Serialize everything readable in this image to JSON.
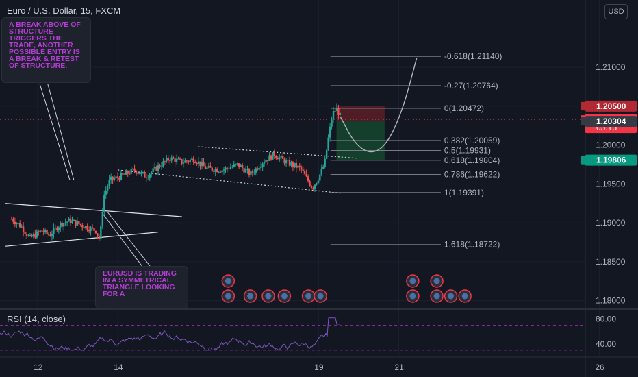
{
  "header": {
    "title": "Euro / U.S. Dollar, 15, FXCM",
    "currency_button": "USD"
  },
  "indicator": {
    "label": "RSI (14, close)"
  },
  "annotations": [
    {
      "text": "A BREAK ABOVE OF STRUCTURE TRIGGERS THE TRADE, ANOTHER POSSIBLE ENTRY IS A BREAK & RETEST OF STRUCTURE."
    },
    {
      "text": "EURUSD IS TRADING IN A SYMMETRICAL TRIANGLE LOOKING FOR A"
    }
  ],
  "colors": {
    "background": "#131722",
    "bull_candle": "#26a69a",
    "bear_candle": "#ef5350",
    "annotation_text": "#b53dd6",
    "rsi_line": "#7e57c2",
    "fib_line": "#787b86",
    "stop_zone": "#5a1f26",
    "target_zone": "#16472f"
  },
  "chart_data": {
    "type": "candlestick",
    "symbol": "EURUSD",
    "timeframe": "15",
    "ylim": [
      1.179,
      1.216
    ],
    "y_ticks": [
      "1.21000",
      "1.20500",
      "1.20000",
      "1.19500",
      "1.19000",
      "1.18500",
      "1.18000"
    ],
    "x_ticks": [
      "12",
      "14",
      "19",
      "21",
      "26"
    ],
    "x_tick_days": [
      12,
      14,
      19,
      21,
      26
    ],
    "fib_levels": [
      {
        "label": "-0.618(1.21140)",
        "price": 1.2114
      },
      {
        "label": "-0.27(1.20764)",
        "price": 1.20764
      },
      {
        "label": "0(1.20472)",
        "price": 1.20472
      },
      {
        "label": "0.382(1.20059)",
        "price": 1.20059
      },
      {
        "label": "0.5(1.19931)",
        "price": 1.19931
      },
      {
        "label": "0.618(1.19804)",
        "price": 1.19804
      },
      {
        "label": "0.786(1.19622)",
        "price": 1.19622
      },
      {
        "label": "1(1.19391)",
        "price": 1.19391
      },
      {
        "label": "1.618(1.18722)",
        "price": 1.18722
      }
    ],
    "price_labels": [
      {
        "text": "1.20500",
        "price": 1.205,
        "color": "#b22833"
      },
      {
        "text": "1.20330",
        "countdown": "03:15",
        "price": 1.2033,
        "color": "#f23645"
      },
      {
        "text": "1.20304",
        "price": 1.20304,
        "color": "#363a45"
      },
      {
        "text": "1.19806",
        "price": 1.19806,
        "color": "#089981"
      }
    ],
    "position": {
      "entry": 1.20304,
      "stop": 1.205,
      "target": 1.19806
    },
    "rsi": {
      "ylim": [
        20,
        95
      ],
      "ticks": [
        "80.00",
        "40.00"
      ],
      "bands": [
        70,
        30
      ]
    },
    "price_path": [
      {
        "day": 11.35,
        "price": 1.1905
      },
      {
        "day": 11.6,
        "price": 1.1895
      },
      {
        "day": 11.8,
        "price": 1.188
      },
      {
        "day": 12.1,
        "price": 1.189
      },
      {
        "day": 12.3,
        "price": 1.1884
      },
      {
        "day": 12.55,
        "price": 1.1898
      },
      {
        "day": 12.8,
        "price": 1.1903
      },
      {
        "day": 13.1,
        "price": 1.1897
      },
      {
        "day": 13.45,
        "price": 1.189
      },
      {
        "day": 13.55,
        "price": 1.1878
      },
      {
        "day": 13.65,
        "price": 1.1935
      },
      {
        "day": 13.8,
        "price": 1.1955
      },
      {
        "day": 14.1,
        "price": 1.196
      },
      {
        "day": 14.4,
        "price": 1.1968
      },
      {
        "day": 14.7,
        "price": 1.196
      },
      {
        "day": 15.0,
        "price": 1.1972
      },
      {
        "day": 15.3,
        "price": 1.1983
      },
      {
        "day": 15.6,
        "price": 1.1978
      },
      {
        "day": 15.9,
        "price": 1.1982
      },
      {
        "day": 16.2,
        "price": 1.197
      },
      {
        "day": 16.6,
        "price": 1.1968
      },
      {
        "day": 17.0,
        "price": 1.1975
      },
      {
        "day": 17.3,
        "price": 1.1962
      },
      {
        "day": 17.6,
        "price": 1.1978
      },
      {
        "day": 17.9,
        "price": 1.1988
      },
      {
        "day": 18.2,
        "price": 1.1978
      },
      {
        "day": 18.55,
        "price": 1.197
      },
      {
        "day": 18.85,
        "price": 1.1945
      },
      {
        "day": 19.0,
        "price": 1.1958
      },
      {
        "day": 19.15,
        "price": 1.1975
      },
      {
        "day": 19.25,
        "price": 1.201
      },
      {
        "day": 19.35,
        "price": 1.204
      },
      {
        "day": 19.45,
        "price": 1.2047
      },
      {
        "day": 19.55,
        "price": 1.2036
      }
    ],
    "projection": [
      {
        "day": 19.55,
        "price": 1.2036
      },
      {
        "day": 19.9,
        "price": 1.2002
      },
      {
        "day": 20.3,
        "price": 1.1988
      },
      {
        "day": 20.7,
        "price": 1.2
      },
      {
        "day": 21.1,
        "price": 1.2045
      },
      {
        "day": 21.45,
        "price": 1.2112
      }
    ],
    "trendlines": [
      {
        "name": "triangle-upper",
        "from": {
          "day": 11.2,
          "price": 1.1925
        },
        "to": {
          "day": 15.6,
          "price": 1.1908
        }
      },
      {
        "name": "triangle-lower",
        "from": {
          "day": 11.2,
          "price": 1.187
        },
        "to": {
          "day": 15.0,
          "price": 1.1888
        }
      },
      {
        "name": "channel-upper",
        "from": {
          "day": 16.0,
          "price": 1.1998
        },
        "to": {
          "day": 20.0,
          "price": 1.1983
        }
      },
      {
        "name": "channel-lower",
        "from": {
          "day": 14.0,
          "price": 1.1968
        },
        "to": {
          "day": 19.6,
          "price": 1.1938
        }
      }
    ]
  }
}
